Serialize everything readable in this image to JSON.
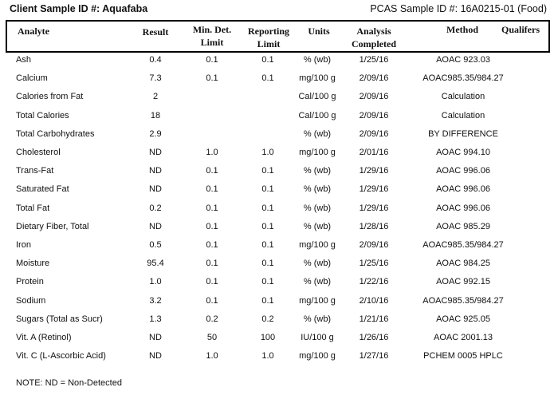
{
  "header": {
    "client_label": "Client Sample ID #: Aquafaba",
    "pcas_label": "PCAS Sample ID #: 16A0215-01 (Food)"
  },
  "columns": {
    "analyte": "Analyte",
    "result": "Result",
    "mdl": "Min. Det.\nLimit",
    "reporting": "Reporting\nLimit",
    "units": "Units",
    "completed": "Analysis\nCompleted",
    "method": "Method",
    "qualifiers": "Qualifers"
  },
  "rows": [
    {
      "analyte": "Ash",
      "result": "0.4",
      "mdl": "0.1",
      "rl": "0.1",
      "units": "% (wb)",
      "date": "1/25/16",
      "method": "AOAC 923.03",
      "q": ""
    },
    {
      "analyte": "Calcium",
      "result": "7.3",
      "mdl": "0.1",
      "rl": "0.1",
      "units": "mg/100 g",
      "date": "2/09/16",
      "method": "AOAC985.35/984.27",
      "q": ""
    },
    {
      "analyte": "Calories from Fat",
      "result": "2",
      "mdl": "",
      "rl": "",
      "units": "Cal/100 g",
      "date": "2/09/16",
      "method": "Calculation",
      "q": ""
    },
    {
      "analyte": "Total Calories",
      "result": "18",
      "mdl": "",
      "rl": "",
      "units": "Cal/100 g",
      "date": "2/09/16",
      "method": "Calculation",
      "q": ""
    },
    {
      "analyte": "Total Carbohydrates",
      "result": "2.9",
      "mdl": "",
      "rl": "",
      "units": "% (wb)",
      "date": "2/09/16",
      "method": "BY DIFFERENCE",
      "q": ""
    },
    {
      "analyte": "Cholesterol",
      "result": "ND",
      "mdl": "1.0",
      "rl": "1.0",
      "units": "mg/100 g",
      "date": "2/01/16",
      "method": "AOAC 994.10",
      "q": ""
    },
    {
      "analyte": "Trans-Fat",
      "result": "ND",
      "mdl": "0.1",
      "rl": "0.1",
      "units": "% (wb)",
      "date": "1/29/16",
      "method": "AOAC 996.06",
      "q": ""
    },
    {
      "analyte": "Saturated Fat",
      "result": "ND",
      "mdl": "0.1",
      "rl": "0.1",
      "units": "% (wb)",
      "date": "1/29/16",
      "method": "AOAC 996.06",
      "q": ""
    },
    {
      "analyte": "Total Fat",
      "result": "0.2",
      "mdl": "0.1",
      "rl": "0.1",
      "units": "% (wb)",
      "date": "1/29/16",
      "method": "AOAC 996.06",
      "q": ""
    },
    {
      "analyte": "Dietary Fiber, Total",
      "result": "ND",
      "mdl": "0.1",
      "rl": "0.1",
      "units": "% (wb)",
      "date": "1/28/16",
      "method": "AOAC 985.29",
      "q": ""
    },
    {
      "analyte": "Iron",
      "result": "0.5",
      "mdl": "0.1",
      "rl": "0.1",
      "units": "mg/100 g",
      "date": "2/09/16",
      "method": "AOAC985.35/984.27",
      "q": ""
    },
    {
      "analyte": "Moisture",
      "result": "95.4",
      "mdl": "0.1",
      "rl": "0.1",
      "units": "% (wb)",
      "date": "1/25/16",
      "method": "AOAC 984.25",
      "q": ""
    },
    {
      "analyte": "Protein",
      "result": "1.0",
      "mdl": "0.1",
      "rl": "0.1",
      "units": "% (wb)",
      "date": "1/22/16",
      "method": "AOAC 992.15",
      "q": ""
    },
    {
      "analyte": "Sodium",
      "result": "3.2",
      "mdl": "0.1",
      "rl": "0.1",
      "units": "mg/100 g",
      "date": "2/10/16",
      "method": "AOAC985.35/984.27",
      "q": ""
    },
    {
      "analyte": "Sugars (Total as Sucr)",
      "result": "1.3",
      "mdl": "0.2",
      "rl": "0.2",
      "units": "% (wb)",
      "date": "1/21/16",
      "method": "AOAC 925.05",
      "q": ""
    },
    {
      "analyte": "Vit. A (Retinol)",
      "result": "ND",
      "mdl": "50",
      "rl": "100",
      "units": "IU/100 g",
      "date": "1/26/16",
      "method": "AOAC 2001.13",
      "q": ""
    },
    {
      "analyte": "Vit. C (L-Ascorbic Acid)",
      "result": "ND",
      "mdl": "1.0",
      "rl": "1.0",
      "units": "mg/100 g",
      "date": "1/27/16",
      "method": "PCHEM 0005 HPLC",
      "q": ""
    }
  ],
  "footer": {
    "note": "NOTE: ND = Non-Detected"
  }
}
